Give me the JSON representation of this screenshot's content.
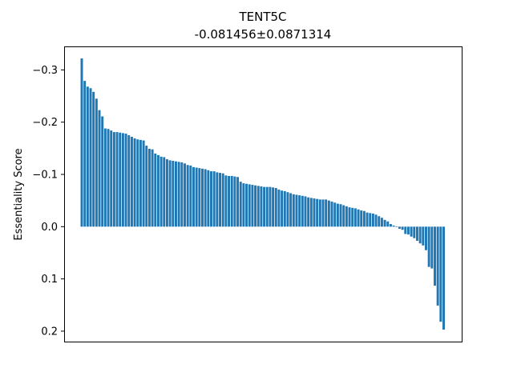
{
  "chart_data": {
    "type": "bar",
    "title": "TENT5C",
    "subtitle": "-0.081456±0.0871314",
    "xlabel": "",
    "ylabel": "Essentiality Score",
    "ylim": [
      0.22,
      -0.345
    ],
    "y_inverted": true,
    "yticks": [
      -0.3,
      -0.2,
      -0.1,
      0.0,
      0.1,
      0.2
    ],
    "ytick_labels": [
      "−0.3",
      "−0.2",
      "−0.1",
      "0.0",
      "0.1",
      "0.2"
    ],
    "xticks_visible": false,
    "grid": false,
    "legend": "none",
    "bar_color": "#1f77b4",
    "values": [
      -0.322,
      -0.279,
      -0.268,
      -0.265,
      -0.258,
      -0.245,
      -0.223,
      -0.211,
      -0.188,
      -0.187,
      -0.184,
      -0.181,
      -0.181,
      -0.18,
      -0.179,
      -0.178,
      -0.175,
      -0.172,
      -0.169,
      -0.167,
      -0.166,
      -0.165,
      -0.155,
      -0.149,
      -0.148,
      -0.14,
      -0.137,
      -0.134,
      -0.133,
      -0.129,
      -0.127,
      -0.126,
      -0.125,
      -0.124,
      -0.123,
      -0.121,
      -0.118,
      -0.117,
      -0.114,
      -0.113,
      -0.112,
      -0.111,
      -0.11,
      -0.108,
      -0.106,
      -0.106,
      -0.104,
      -0.103,
      -0.102,
      -0.098,
      -0.097,
      -0.097,
      -0.096,
      -0.095,
      -0.086,
      -0.083,
      -0.082,
      -0.081,
      -0.08,
      -0.079,
      -0.078,
      -0.077,
      -0.076,
      -0.076,
      -0.076,
      -0.075,
      -0.074,
      -0.071,
      -0.069,
      -0.068,
      -0.066,
      -0.064,
      -0.062,
      -0.061,
      -0.06,
      -0.059,
      -0.058,
      -0.056,
      -0.055,
      -0.054,
      -0.053,
      -0.052,
      -0.052,
      -0.052,
      -0.05,
      -0.048,
      -0.046,
      -0.044,
      -0.043,
      -0.041,
      -0.039,
      -0.037,
      -0.036,
      -0.035,
      -0.033,
      -0.031,
      -0.03,
      -0.027,
      -0.026,
      -0.025,
      -0.023,
      -0.02,
      -0.017,
      -0.013,
      -0.01,
      -0.005,
      -0.002,
      0.001,
      0.004,
      0.006,
      0.014,
      0.015,
      0.019,
      0.022,
      0.027,
      0.032,
      0.036,
      0.045,
      0.077,
      0.08,
      0.113,
      0.151,
      0.182,
      0.197
    ]
  }
}
